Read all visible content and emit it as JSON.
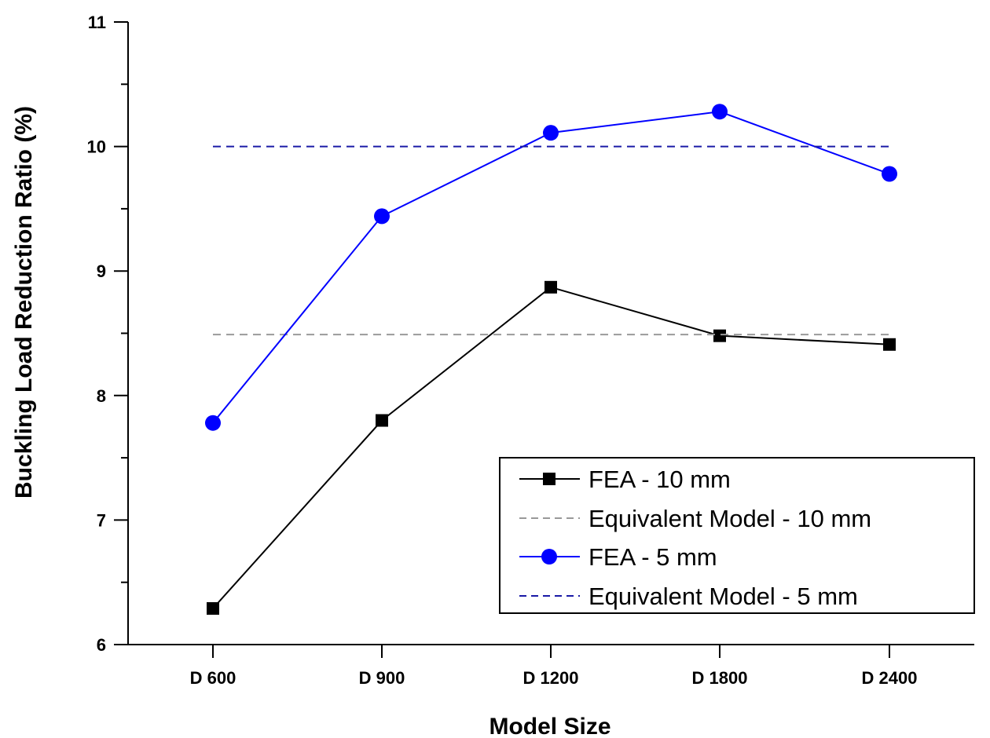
{
  "chart_data": {
    "type": "line",
    "title": "",
    "xlabel": "Model Size",
    "ylabel": "Buckling Load Reduction Ratio (%)",
    "categories": [
      "D 600",
      "D 900",
      "D 1200",
      "D 1800",
      "D 2400"
    ],
    "ylim": [
      6,
      11
    ],
    "yticks": [
      6,
      7,
      8,
      9,
      10,
      11
    ],
    "yticks_minor": [
      6.5,
      7.5,
      8.5,
      9.5,
      10.5
    ],
    "grid": false,
    "legend_position": "bottom-right",
    "series": [
      {
        "name": "FEA - 10 mm",
        "style": "solid",
        "marker": "square",
        "color": "#000000",
        "values": [
          6.29,
          7.8,
          8.87,
          8.48,
          8.41
        ]
      },
      {
        "name": "Equivalent Model - 10 mm",
        "style": "dashed",
        "marker": "none",
        "color": "#999999",
        "values": [
          8.49,
          8.49,
          8.49,
          8.49,
          8.49
        ]
      },
      {
        "name": "FEA - 5 mm",
        "style": "solid",
        "marker": "circle",
        "color": "#0000ff",
        "values": [
          7.78,
          9.44,
          10.11,
          10.28,
          9.78
        ]
      },
      {
        "name": "Equivalent Model - 5 mm",
        "style": "dashed",
        "marker": "none",
        "color": "#1a1aa6",
        "values": [
          10.0,
          10.0,
          10.0,
          10.0,
          10.0
        ]
      }
    ]
  }
}
